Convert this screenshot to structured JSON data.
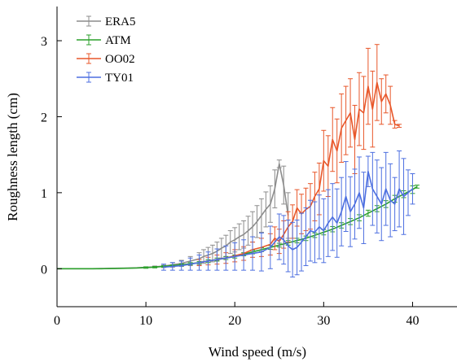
{
  "chart_data": {
    "type": "line",
    "title": "",
    "xlabel": "Wind speed (m/s)",
    "ylabel": "Roughness length (cm)",
    "xlim": [
      0,
      45
    ],
    "ylim": [
      -0.5,
      3.45
    ],
    "xticks": [
      0,
      10,
      20,
      30,
      40
    ],
    "yticks": [
      0,
      1,
      2,
      3
    ],
    "grid": false,
    "legend_position": "top-left",
    "series": [
      {
        "name": "ERA5",
        "color": "#8c8c8c",
        "error_bars": true,
        "x": [
          0,
          1,
          2,
          3,
          4,
          5,
          6,
          7,
          8,
          9,
          10,
          11,
          12,
          13,
          14,
          15,
          16,
          16.5,
          17,
          17.5,
          18,
          18.5,
          19,
          19.5,
          20,
          20.5,
          21,
          21.5,
          22,
          22.5,
          23,
          23.5,
          24,
          24.5,
          25,
          25.5,
          26
        ],
        "y": [
          0,
          0,
          0,
          0,
          0,
          0.002,
          0.004,
          0.006,
          0.008,
          0.012,
          0.018,
          0.025,
          0.035,
          0.05,
          0.07,
          0.1,
          0.13,
          0.16,
          0.18,
          0.2,
          0.23,
          0.27,
          0.3,
          0.35,
          0.38,
          0.42,
          0.45,
          0.5,
          0.55,
          0.62,
          0.7,
          0.78,
          0.85,
          1.05,
          1.38,
          1.1,
          0.7
        ],
        "err": [
          0,
          0,
          0,
          0,
          0,
          0,
          0,
          0,
          0,
          0,
          0.005,
          0.01,
          0.02,
          0.03,
          0.04,
          0.06,
          0.08,
          0.09,
          0.1,
          0.11,
          0.12,
          0.13,
          0.14,
          0.15,
          0.16,
          0.17,
          0.18,
          0.19,
          0.2,
          0.21,
          0.22,
          0.23,
          0.24,
          0.25,
          0.05,
          0.25,
          0.3
        ]
      },
      {
        "name": "ATM",
        "color": "#2ca02c",
        "error_bars": true,
        "x": [
          0,
          1,
          2,
          3,
          4,
          5,
          6,
          7,
          8,
          9,
          10,
          11,
          12,
          13,
          14,
          15,
          16,
          17,
          18,
          19,
          20,
          21,
          22,
          23,
          24,
          25,
          26,
          27,
          28,
          29,
          30,
          31,
          32,
          33,
          34,
          35,
          36,
          37,
          38,
          39,
          40,
          40.5
        ],
        "y": [
          0,
          0,
          0,
          0,
          0,
          0,
          0.002,
          0.004,
          0.006,
          0.01,
          0.015,
          0.02,
          0.03,
          0.04,
          0.05,
          0.065,
          0.08,
          0.1,
          0.12,
          0.14,
          0.16,
          0.19,
          0.22,
          0.25,
          0.28,
          0.31,
          0.34,
          0.37,
          0.4,
          0.44,
          0.48,
          0.52,
          0.57,
          0.62,
          0.67,
          0.73,
          0.79,
          0.85,
          0.92,
          0.98,
          1.04,
          1.08
        ],
        "err": [
          0,
          0,
          0,
          0,
          0,
          0,
          0,
          0,
          0,
          0,
          0.01,
          0.01,
          0.01,
          0.01,
          0.015,
          0.015,
          0.015,
          0.02,
          0.02,
          0.02,
          0.02,
          0.02,
          0.025,
          0.025,
          0.025,
          0.025,
          0.03,
          0.03,
          0.03,
          0.03,
          0.035,
          0.035,
          0.035,
          0.04,
          0.04,
          0.04,
          0.04,
          0.045,
          0.045,
          0.045,
          0.05,
          0.02
        ]
      },
      {
        "name": "OO02",
        "color": "#e8572a",
        "error_bars": true,
        "x": [
          16,
          17,
          18,
          19,
          20,
          21,
          22,
          23,
          24,
          24.5,
          25,
          25.5,
          26,
          26.5,
          27,
          27.5,
          28,
          28.5,
          29,
          29.5,
          30,
          30.5,
          31,
          31.5,
          32,
          32.5,
          33,
          33.5,
          34,
          34.5,
          35,
          35.5,
          36,
          36.5,
          37,
          37.5,
          38,
          38.5
        ],
        "y": [
          0.08,
          0.1,
          0.12,
          0.14,
          0.17,
          0.2,
          0.25,
          0.28,
          0.32,
          0.4,
          0.36,
          0.45,
          0.55,
          0.62,
          0.8,
          0.72,
          0.78,
          0.82,
          0.95,
          1.05,
          1.42,
          1.35,
          1.7,
          1.55,
          1.85,
          1.95,
          2.05,
          1.7,
          2.1,
          2.05,
          2.4,
          2.1,
          2.45,
          2.2,
          2.3,
          2.15,
          1.9,
          1.88
        ],
        "err": [
          0.04,
          0.05,
          0.06,
          0.07,
          0.08,
          0.09,
          0.1,
          0.12,
          0.14,
          0.15,
          0.16,
          0.18,
          0.2,
          0.22,
          0.24,
          0.26,
          0.28,
          0.3,
          0.32,
          0.34,
          0.4,
          0.4,
          0.42,
          0.42,
          0.45,
          0.45,
          0.45,
          0.45,
          0.48,
          0.48,
          0.5,
          0.5,
          0.5,
          0.3,
          0.25,
          0.25,
          0.05,
          0.02
        ]
      },
      {
        "name": "TY01",
        "color": "#4d6fe0",
        "error_bars": true,
        "x": [
          12,
          13,
          14,
          15,
          16,
          17,
          18,
          19,
          20,
          21,
          22,
          23,
          24,
          25,
          25.5,
          26,
          26.5,
          27,
          27.5,
          28,
          28.5,
          29,
          29.5,
          30,
          30.5,
          31,
          31.5,
          32,
          32.5,
          33,
          33.5,
          34,
          34.5,
          35,
          35.5,
          36,
          36.5,
          37,
          37.5,
          38,
          38.5,
          39,
          39.5,
          40
        ],
        "y": [
          0.02,
          0.03,
          0.04,
          0.06,
          0.08,
          0.1,
          0.12,
          0.14,
          0.16,
          0.18,
          0.2,
          0.22,
          0.28,
          0.42,
          0.38,
          0.3,
          0.25,
          0.28,
          0.35,
          0.42,
          0.5,
          0.48,
          0.55,
          0.5,
          0.6,
          0.68,
          0.6,
          0.75,
          0.95,
          0.75,
          0.85,
          1.0,
          0.8,
          1.28,
          1.05,
          0.95,
          0.85,
          1.05,
          0.9,
          0.85,
          1.05,
          0.95,
          1.0,
          1.05
        ],
        "err": [
          0.04,
          0.05,
          0.06,
          0.08,
          0.1,
          0.12,
          0.14,
          0.16,
          0.18,
          0.2,
          0.22,
          0.25,
          0.28,
          0.3,
          0.32,
          0.34,
          0.36,
          0.36,
          0.38,
          0.38,
          0.4,
          0.4,
          0.42,
          0.42,
          0.44,
          0.44,
          0.45,
          0.45,
          0.46,
          0.46,
          0.46,
          0.47,
          0.47,
          0.2,
          0.48,
          0.48,
          0.48,
          0.48,
          0.48,
          0.35,
          0.5,
          0.5,
          0.3,
          0.2
        ]
      }
    ]
  }
}
